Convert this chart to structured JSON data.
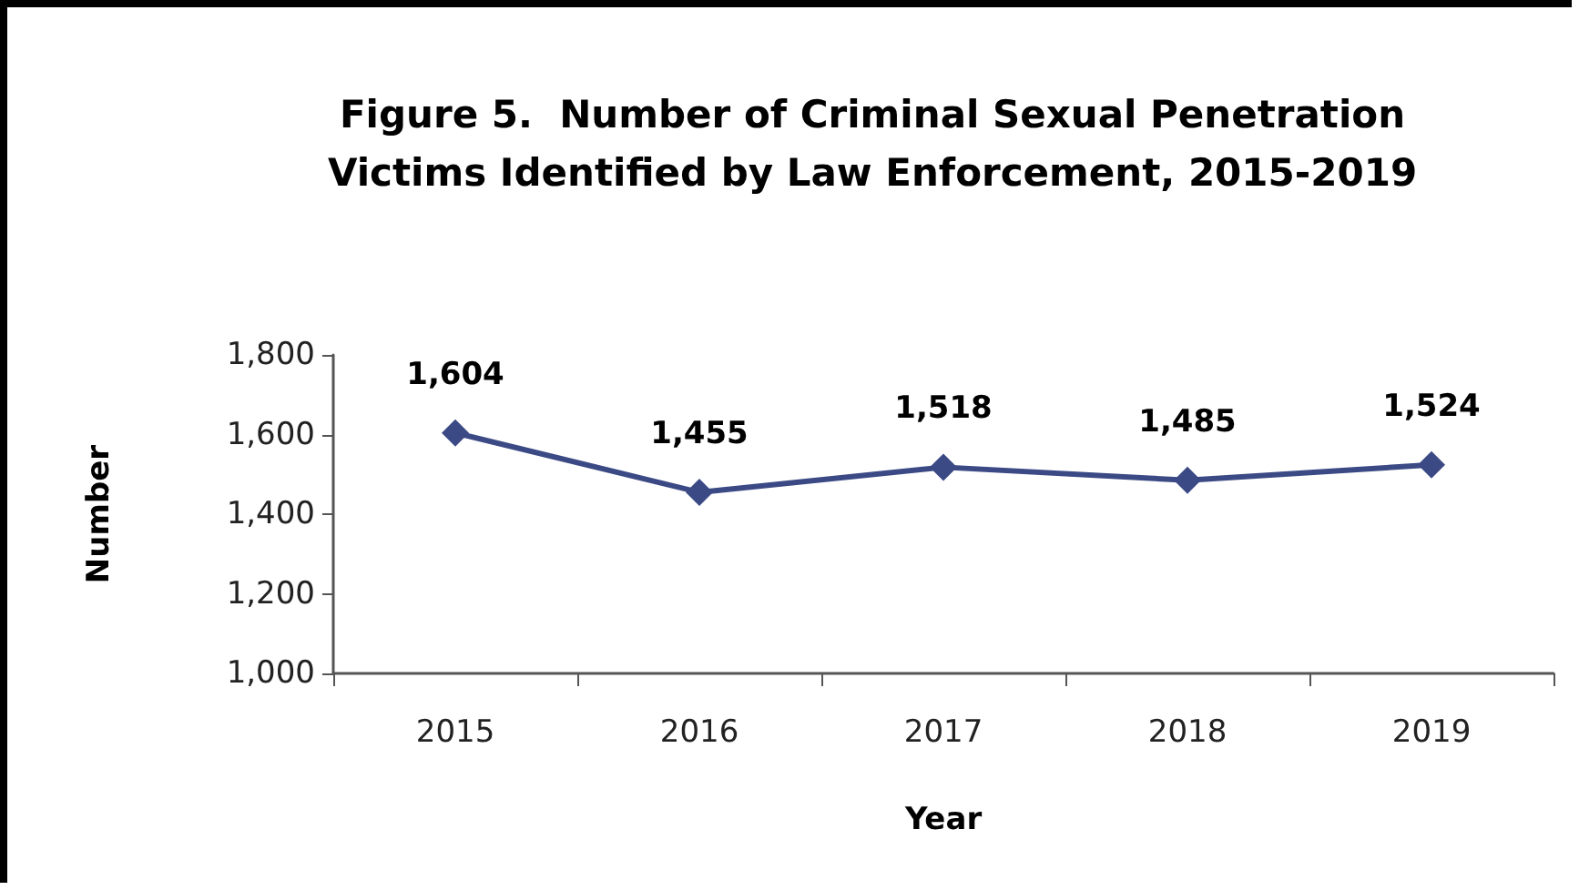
{
  "chart_data": {
    "type": "line",
    "title": "Figure 5.  Number of Criminal Sexual Penetration\nVictims Identified by Law Enforcement, 2015-2019",
    "xlabel": "Year",
    "ylabel": "Number",
    "categories": [
      "2015",
      "2016",
      "2017",
      "2018",
      "2019"
    ],
    "series": [
      {
        "color": "#3b4a85",
        "values": [
          1604,
          1455,
          1518,
          1485,
          1524
        ],
        "value_labels": [
          "1,604",
          "1,455",
          "1,518",
          "1,485",
          "1,524"
        ]
      }
    ],
    "ylim": [
      1000,
      1800
    ],
    "yticks": [
      {
        "value": 1000,
        "label": "1,000"
      },
      {
        "value": 1200,
        "label": "1,200"
      },
      {
        "value": 1400,
        "label": "1,400"
      },
      {
        "value": 1600,
        "label": "1,600"
      },
      {
        "value": 1800,
        "label": "1,800"
      }
    ],
    "grid": false,
    "marker": "diamond",
    "line_style": "solid"
  }
}
